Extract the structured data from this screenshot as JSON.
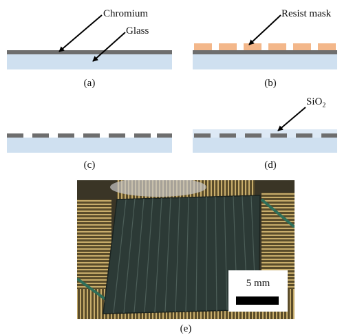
{
  "panels": {
    "a": {
      "label": "(a)",
      "chromium_callout": "Chromium",
      "glass_callout": "Glass"
    },
    "b": {
      "label": "(b)",
      "resist_callout": "Resist mask"
    },
    "c": {
      "label": "(c)"
    },
    "d": {
      "label": "(d)",
      "sio2_callout": "SiO",
      "sio2_subscript": "2"
    },
    "e": {
      "label": "(e)",
      "scale_bar_text": "5 mm"
    }
  },
  "colors": {
    "glass": "#cfe0f0",
    "chromium": "#6e6e6e",
    "resist": "#f3b78a",
    "photo_background": "#3a3526",
    "device": "#2c3a36",
    "scale_bar": "#000000"
  }
}
